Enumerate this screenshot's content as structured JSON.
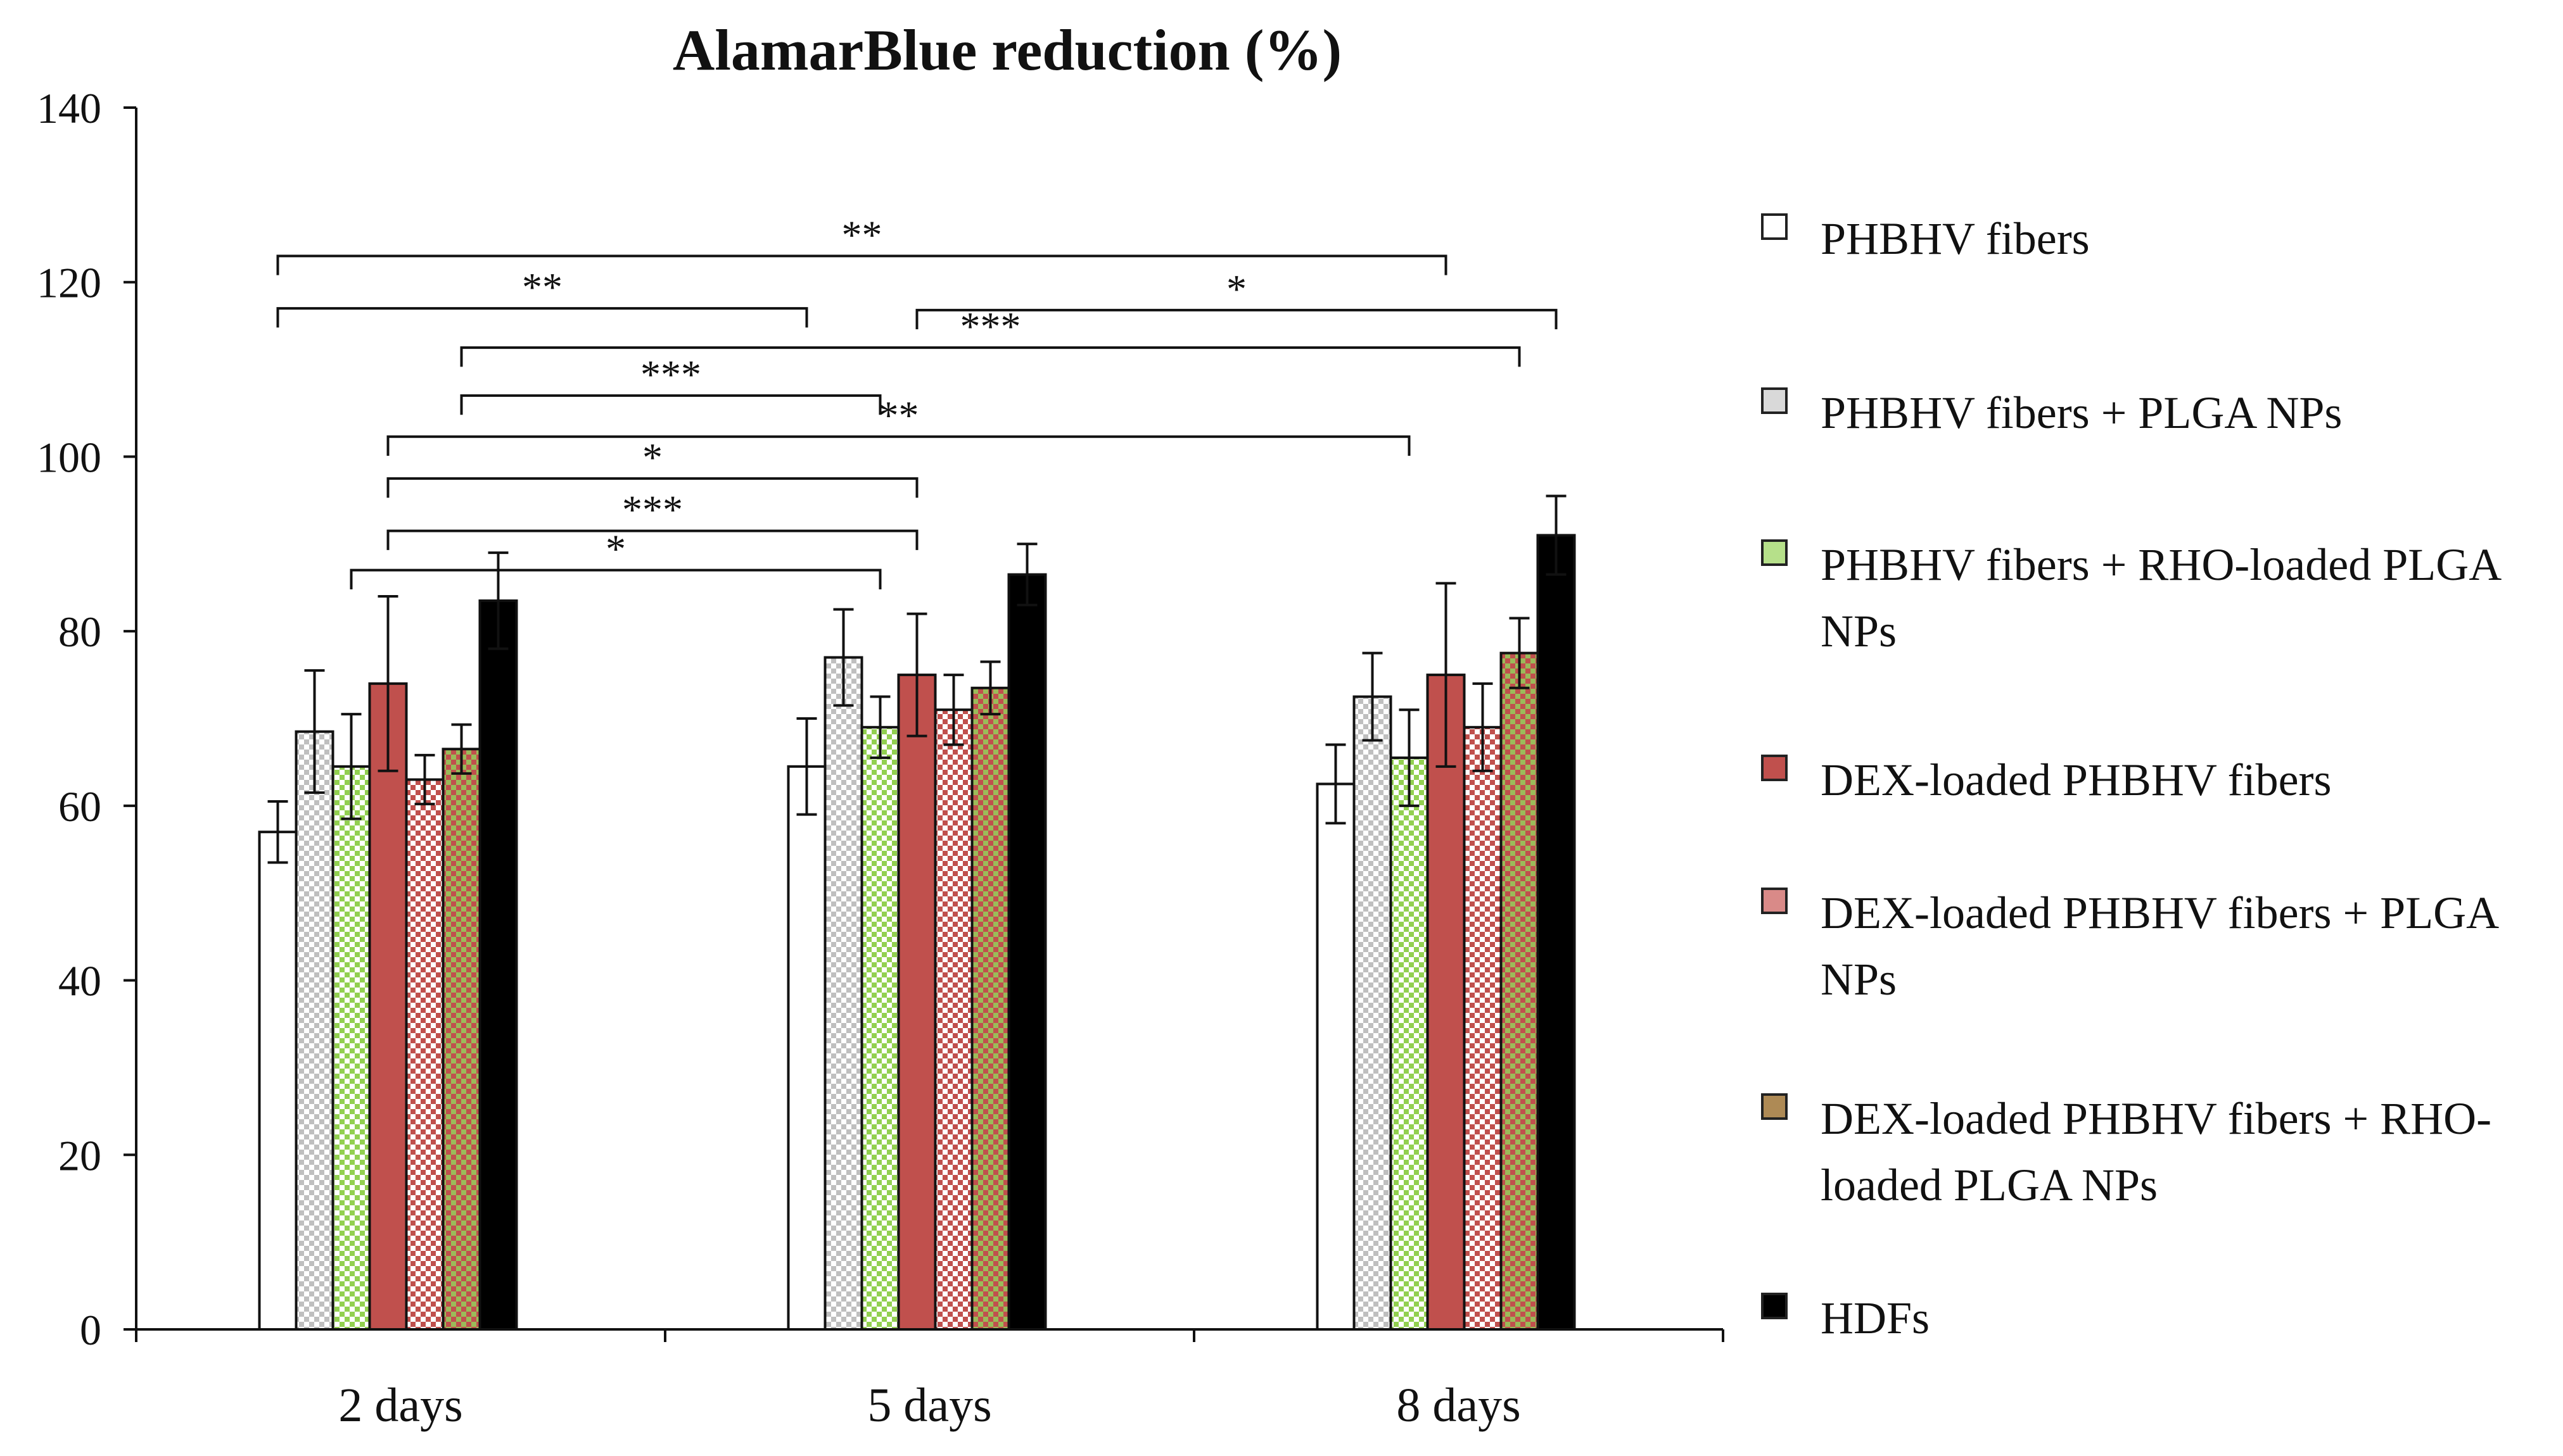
{
  "chart_data": {
    "type": "bar",
    "title": "AlamarBlue reduction (%)",
    "xlabel": "",
    "ylabel": "",
    "ylim": [
      0,
      140
    ],
    "yticks": [
      0,
      20,
      40,
      60,
      80,
      100,
      120,
      140
    ],
    "ytick_labels": [
      "0",
      "20",
      "40",
      "60",
      "80",
      "100",
      "120",
      "140"
    ],
    "categories": [
      "2 days",
      "5 days",
      "8 days"
    ],
    "series": [
      {
        "name": "PHBHV fibers",
        "values": [
          57,
          64.5,
          62.5
        ],
        "errors": [
          3.5,
          5.5,
          4.5
        ],
        "color": "#ffffff",
        "pattern": "solid"
      },
      {
        "name": "PHBHV fibers + PLGA NPs",
        "values": [
          68.5,
          77,
          72.5
        ],
        "errors": [
          7,
          5.5,
          5
        ],
        "color": "#bfbfbf",
        "pattern": "checker"
      },
      {
        "name": "PHBHV fibers + RHO-loaded PLGA NPs",
        "values": [
          64.5,
          69,
          65.5
        ],
        "errors": [
          6,
          3.5,
          5.5
        ],
        "color": "#92d050",
        "pattern": "checker"
      },
      {
        "name": "DEX-loaded PHBHV fibers",
        "values": [
          74,
          75,
          75
        ],
        "errors": [
          10,
          7,
          10.5
        ],
        "color": "#c0504d",
        "pattern": "solid"
      },
      {
        "name": "DEX-loaded PHBHV fibers + PLGA NPs",
        "values": [
          63,
          71,
          69
        ],
        "errors": [
          2.8,
          4,
          5
        ],
        "color": "#c0504d",
        "pattern": "checker"
      },
      {
        "name": "DEX-loaded PHBHV fibers + RHO-loaded PLGA NPs",
        "values": [
          66.5,
          73.5,
          77.5
        ],
        "errors": [
          2.8,
          3,
          4
        ],
        "color": "#9bbb59",
        "pattern": "checker"
      },
      {
        "name": "HDFs",
        "values": [
          83.5,
          86.5,
          91
        ],
        "errors": [
          5.5,
          3.5,
          4.5
        ],
        "color": "#000000",
        "pattern": "solid"
      }
    ],
    "annotations": [
      {
        "label": "**",
        "from": [
          0,
          0
        ],
        "to": [
          2,
          3
        ],
        "y": 123,
        "tick_drop": 2.2
      },
      {
        "label": "**",
        "from": [
          0,
          0
        ],
        "to": [
          1,
          0
        ],
        "y": 117,
        "tick_drop": 2.2
      },
      {
        "label": "*",
        "from": [
          1,
          3
        ],
        "to": [
          2,
          6
        ],
        "y": 116.8,
        "tick_drop": 2.2
      },
      {
        "label": "***",
        "from": [
          0,
          5
        ],
        "to": [
          2,
          5
        ],
        "y": 112.5,
        "tick_drop": 2.2
      },
      {
        "label": "***",
        "from": [
          0,
          5
        ],
        "to": [
          1,
          2
        ],
        "y": 107,
        "tick_drop": 2.2
      },
      {
        "label": "**",
        "from": [
          0,
          3
        ],
        "to": [
          2,
          2
        ],
        "y": 102.3,
        "tick_drop": 2.2
      },
      {
        "label": "*",
        "from": [
          0,
          3
        ],
        "to": [
          1,
          3
        ],
        "y": 97.5,
        "tick_drop": 2.2
      },
      {
        "label": "***",
        "from": [
          0,
          3
        ],
        "to": [
          1,
          3
        ],
        "y": 91.5,
        "tick_drop": 2.2
      },
      {
        "label": "*",
        "from": [
          0,
          2
        ],
        "to": [
          1,
          2
        ],
        "y": 87,
        "tick_drop": 2.2
      }
    ],
    "legend_position": "right"
  }
}
